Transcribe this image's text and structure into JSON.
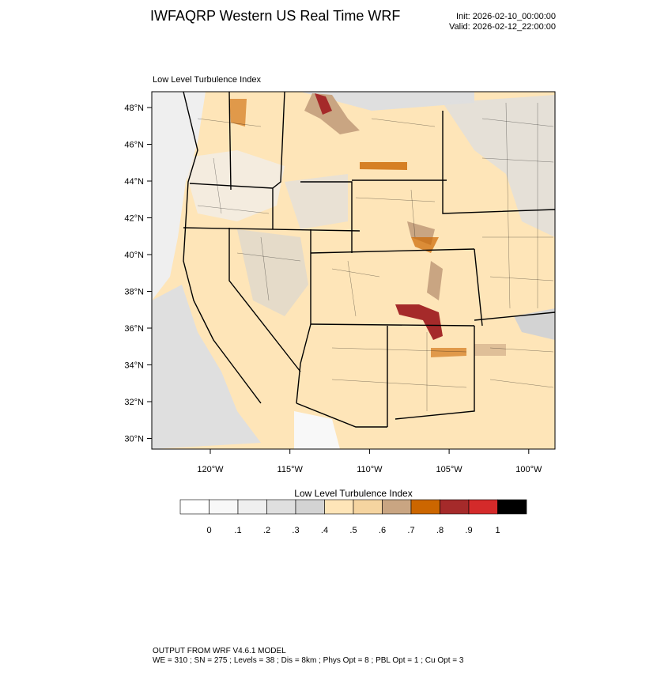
{
  "header": {
    "title": "IWFAQRP Western US Real Time WRF",
    "init": "Init: 2026-02-10_00:00:00",
    "valid": "Valid: 2026-02-12_22:00:00"
  },
  "map": {
    "subtitle": "Low Level Turbulence Index",
    "lat_labels": [
      "48°N",
      "46°N",
      "44°N",
      "42°N",
      "40°N",
      "38°N",
      "36°N",
      "34°N",
      "32°N",
      "30°N"
    ],
    "lon_labels": [
      "120°W",
      "115°W",
      "110°W",
      "105°W",
      "100°W"
    ]
  },
  "colorbar": {
    "title": "Low Level Turbulence Index",
    "colors": [
      "#ffffff",
      "#f8f8f8",
      "#efefef",
      "#dfdfdf",
      "#d3d3d3",
      "#fee5b8",
      "#f5d4a0",
      "#c9a582",
      "#cc6600",
      "#a52a2a",
      "#d42a2a",
      "#000000"
    ],
    "labels": [
      "0",
      ".1",
      ".2",
      ".3",
      ".4",
      ".5",
      ".6",
      ".7",
      ".8",
      ".9",
      "1"
    ]
  },
  "footer": {
    "line1": "OUTPUT FROM WRF V4.6.1 MODEL",
    "line2": "WE = 310 ; SN = 275 ; Levels = 38 ; Dis = 8km ; Phys Opt = 8 ; PBL Opt = 1 ; Cu Opt = 3"
  }
}
